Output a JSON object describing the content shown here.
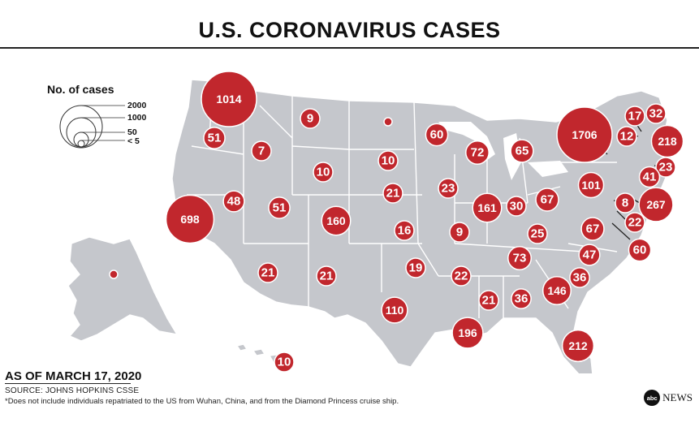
{
  "title": "U.S. CORONAVIRUS CASES",
  "legend": {
    "title": "No. of cases",
    "levels": [
      "2000",
      "1000",
      "50",
      "< 5"
    ]
  },
  "footer": {
    "date": "AS OF MARCH 17, 2020",
    "source": "SOURCE: JOHNS HOPKINS CSSE",
    "note": "*Does not include individuals repatriated to the US from Wuhan, China, and from the Diamond Princess cruise ship."
  },
  "brand": {
    "mark": "abc",
    "name": "NEWS"
  },
  "colors": {
    "bubble": "#c1272d",
    "land": "#c5c7cc",
    "border": "#ffffff"
  },
  "cases": [
    {
      "state": "Washington",
      "value": "1014"
    },
    {
      "state": "Oregon",
      "value": "51"
    },
    {
      "state": "Idaho",
      "value": "7"
    },
    {
      "state": "Montana",
      "value": "9"
    },
    {
      "state": "North Dakota",
      "value": ""
    },
    {
      "state": "Minnesota",
      "value": "60"
    },
    {
      "state": "Wisconsin",
      "value": "72"
    },
    {
      "state": "Michigan",
      "value": "65"
    },
    {
      "state": "New York",
      "value": "1706"
    },
    {
      "state": "Vermont",
      "value": "12"
    },
    {
      "state": "New Hampshire",
      "value": "17"
    },
    {
      "state": "Maine",
      "value": "32"
    },
    {
      "state": "Massachusetts",
      "value": "218"
    },
    {
      "state": "Rhode Island",
      "value": "23"
    },
    {
      "state": "Connecticut",
      "value": "41"
    },
    {
      "state": "New Jersey",
      "value": "267"
    },
    {
      "state": "Delaware",
      "value": "8"
    },
    {
      "state": "Maryland",
      "value": "22"
    },
    {
      "state": "District of Columbia",
      "value": "60"
    },
    {
      "state": "Pennsylvania",
      "value": "101"
    },
    {
      "state": "Wyoming",
      "value": "10"
    },
    {
      "state": "South Dakota",
      "value": "10"
    },
    {
      "state": "Nebraska",
      "value": "21"
    },
    {
      "state": "Iowa",
      "value": "23"
    },
    {
      "state": "Illinois",
      "value": "161"
    },
    {
      "state": "Indiana",
      "value": "30"
    },
    {
      "state": "Ohio",
      "value": "67"
    },
    {
      "state": "Nevada",
      "value": "48"
    },
    {
      "state": "Utah",
      "value": "51"
    },
    {
      "state": "Colorado",
      "value": "160"
    },
    {
      "state": "California",
      "value": "698"
    },
    {
      "state": "Kansas",
      "value": "16"
    },
    {
      "state": "Missouri",
      "value": "9"
    },
    {
      "state": "Kentucky",
      "value": "25"
    },
    {
      "state": "Virginia",
      "value": "67"
    },
    {
      "state": "West Virginia",
      "value": ""
    },
    {
      "state": "Tennessee",
      "value": "73"
    },
    {
      "state": "North Carolina",
      "value": "47"
    },
    {
      "state": "South Carolina",
      "value": "36"
    },
    {
      "state": "Arizona",
      "value": "21"
    },
    {
      "state": "New Mexico",
      "value": "21"
    },
    {
      "state": "Oklahoma",
      "value": "19"
    },
    {
      "state": "Arkansas",
      "value": "22"
    },
    {
      "state": "Mississippi",
      "value": "21"
    },
    {
      "state": "Alabama",
      "value": "36"
    },
    {
      "state": "Georgia",
      "value": "146"
    },
    {
      "state": "Texas",
      "value": "110"
    },
    {
      "state": "Louisiana",
      "value": "196"
    },
    {
      "state": "Florida",
      "value": "212"
    },
    {
      "state": "Alaska",
      "value": ""
    },
    {
      "state": "Hawaii",
      "value": "10"
    }
  ]
}
